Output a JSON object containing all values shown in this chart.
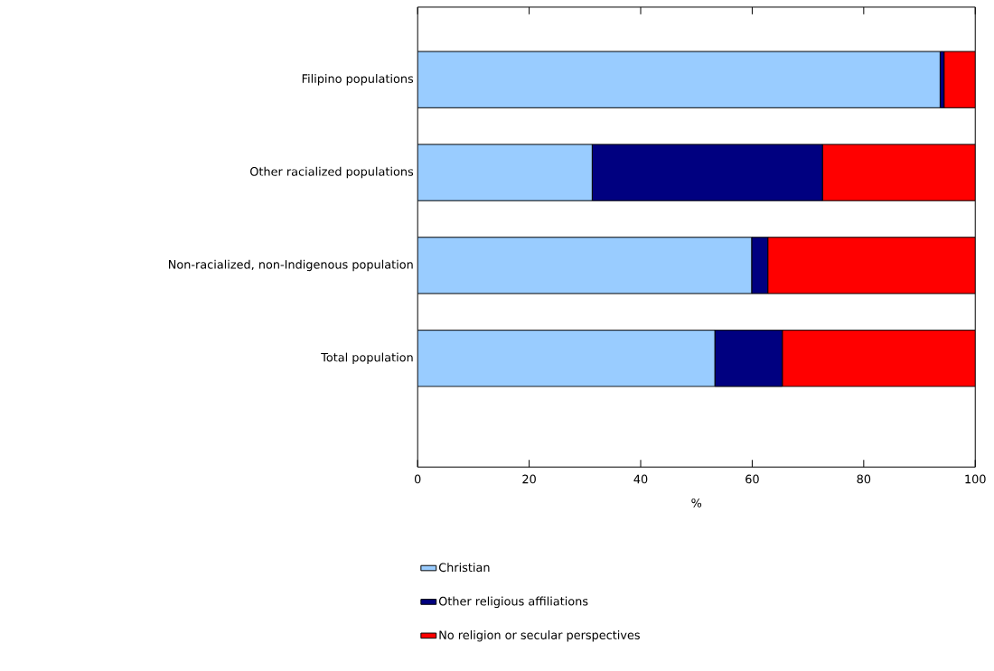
{
  "chart_data": {
    "type": "bar",
    "orientation": "horizontal",
    "stacked": true,
    "categories": [
      "Filipino populations",
      "Other racialized populations",
      "Non-racialized, non-Indigenous population",
      "Total population"
    ],
    "series": [
      {
        "name": "Christian",
        "color": "#99ccff",
        "values": [
          93.7,
          31.3,
          59.9,
          53.3
        ]
      },
      {
        "name": "Other religious affiliations",
        "color": "#000080",
        "values": [
          0.7,
          41.3,
          2.9,
          12.1
        ]
      },
      {
        "name": "No religion or secular perspectives",
        "color": "#ff0000",
        "values": [
          5.6,
          27.4,
          37.2,
          34.6
        ]
      }
    ],
    "xlabel": "%",
    "xlim": [
      0,
      100
    ],
    "xticks": [
      0,
      20,
      40,
      60,
      80,
      100
    ],
    "grid": false,
    "legend": "bottom"
  }
}
